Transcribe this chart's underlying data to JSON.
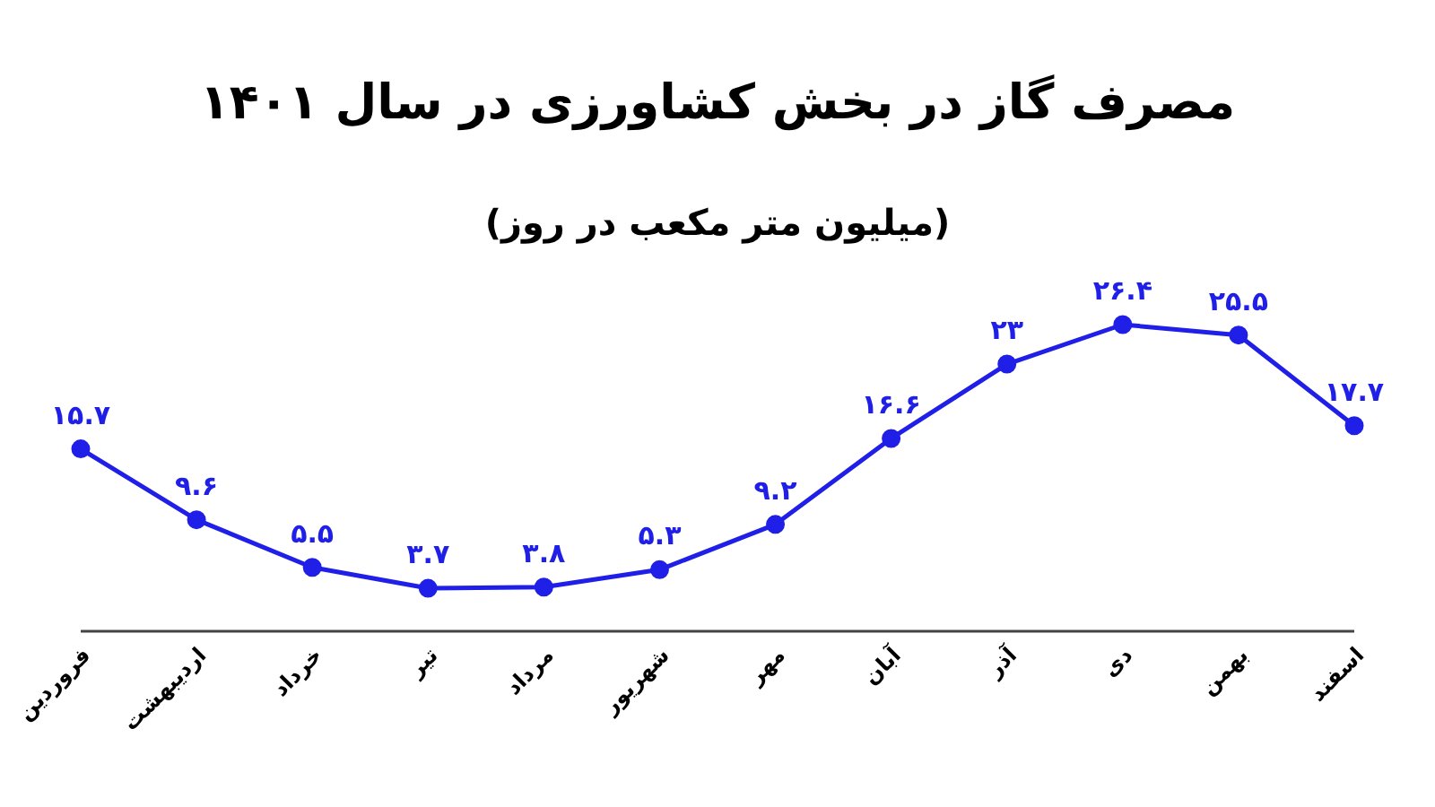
{
  "chart_data": {
    "type": "line",
    "title": "مصرف گاز در بخش کشاورزی در سال ۱۴۰۱",
    "subtitle": "(میلیون متر مکعب در روز)",
    "categories": [
      "فروردین",
      "اردیبهشت",
      "خرداد",
      "تیر",
      "مرداد",
      "شهریور",
      "مهر",
      "آبان",
      "آذر",
      "دی",
      "بهمن",
      "اسفند"
    ],
    "series": [
      {
        "color": "#1f1fe8",
        "values": [
          15.7,
          9.6,
          5.5,
          3.7,
          3.8,
          5.3,
          9.2,
          16.6,
          23,
          26.4,
          25.5,
          17.7
        ],
        "value_labels": [
          "۱۵.۷",
          "۹.۶",
          "۵.۵",
          "۳.۷",
          "۳.۸",
          "۵.۳",
          "۹.۲",
          "۱۶.۶",
          "۲۳",
          "۲۶.۴",
          "۲۵.۵",
          "۱۷.۷"
        ]
      }
    ],
    "marker": "circle",
    "grid": false,
    "legend": false,
    "tick_labels": "x"
  }
}
